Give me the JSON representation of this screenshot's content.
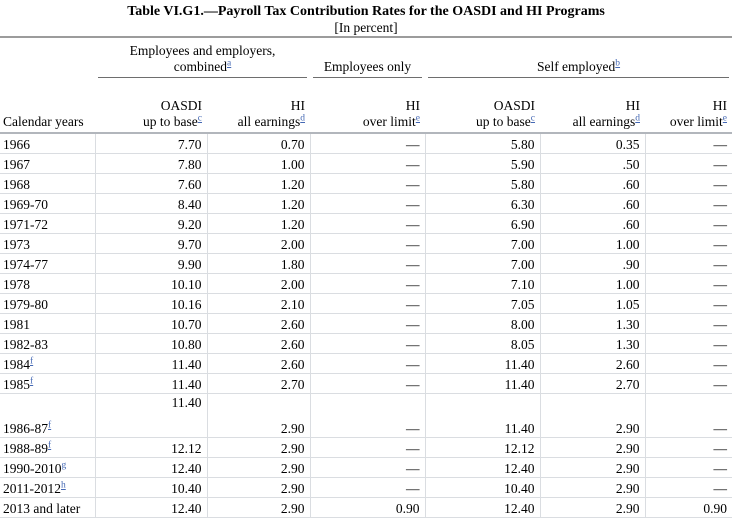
{
  "title": "Table VI.G1.—Payroll Tax Contribution Rates for the OASDI and HI Programs",
  "subtitle": "[In percent]",
  "colors": {
    "footnote_link": "#4468b4",
    "grid_light": "#dadde1",
    "group_underline": "#6e6e6e",
    "header_rule": "#b2b6bc",
    "title_rule": "#9c9c9c"
  },
  "header": {
    "row_label_col": "Calendar years",
    "groups": [
      {
        "line1": "Employees and employers,",
        "line2": "combined",
        "footnote": "a"
      },
      {
        "line2": "Employees only"
      },
      {
        "line2": "Self employed",
        "footnote": "b"
      }
    ],
    "columns": [
      {
        "line1": "OASDI",
        "line2": "up to base",
        "footnote": "c"
      },
      {
        "line1": "HI",
        "line2": "all earnings",
        "footnote": "d"
      },
      {
        "line1": "HI",
        "line2": "over limit",
        "footnote": "e"
      },
      {
        "line1": "OASDI",
        "line2": "up to base",
        "footnote": "c"
      },
      {
        "line1": "HI",
        "line2": "all earnings",
        "footnote": "d"
      },
      {
        "line1": "HI",
        "line2": "over limit",
        "footnote": "e"
      }
    ]
  },
  "rows": [
    {
      "label": "1966",
      "footnote": "",
      "values": [
        "7.70",
        "0.70",
        "—",
        "5.80",
        "0.35",
        "—"
      ]
    },
    {
      "label": "1967",
      "footnote": "",
      "values": [
        "7.80",
        "1.00",
        "—",
        "5.90",
        ".50",
        "—"
      ]
    },
    {
      "label": "1968",
      "footnote": "",
      "values": [
        "7.60",
        "1.20",
        "—",
        "5.80",
        ".60",
        "—"
      ]
    },
    {
      "label": "1969-70",
      "footnote": "",
      "values": [
        "8.40",
        "1.20",
        "—",
        "6.30",
        ".60",
        "—"
      ]
    },
    {
      "label": "1971-72",
      "footnote": "",
      "values": [
        "9.20",
        "1.20",
        "—",
        "6.90",
        ".60",
        "—"
      ]
    },
    {
      "label": "1973",
      "footnote": "",
      "values": [
        "9.70",
        "2.00",
        "—",
        "7.00",
        "1.00",
        "—"
      ]
    },
    {
      "label": "1974-77",
      "footnote": "",
      "values": [
        "9.90",
        "1.80",
        "—",
        "7.00",
        ".90",
        "—"
      ]
    },
    {
      "label": "1978",
      "footnote": "",
      "values": [
        "10.10",
        "2.00",
        "—",
        "7.10",
        "1.00",
        "—"
      ]
    },
    {
      "label": "1979-80",
      "footnote": "",
      "values": [
        "10.16",
        "2.10",
        "—",
        "7.05",
        "1.05",
        "—"
      ]
    },
    {
      "label": "1981",
      "footnote": "",
      "values": [
        "10.70",
        "2.60",
        "—",
        "8.00",
        "1.30",
        "—"
      ]
    },
    {
      "label": "1982-83",
      "footnote": "",
      "values": [
        "10.80",
        "2.60",
        "—",
        "8.05",
        "1.30",
        "—"
      ]
    },
    {
      "label": "1984",
      "footnote": "f",
      "values": [
        "11.40",
        "2.60",
        "—",
        "11.40",
        "2.60",
        "—"
      ]
    },
    {
      "label": "1985",
      "footnote": "f",
      "values": [
        "11.40",
        "2.70",
        "—",
        "11.40",
        "2.70",
        "—"
      ]
    },
    {
      "label": "1986-87",
      "footnote": "f",
      "tall": true,
      "oasdi_top": "11.40",
      "values": [
        "",
        "2.90",
        "—",
        "11.40",
        "2.90",
        "—"
      ]
    },
    {
      "label": "1988-89",
      "footnote": "f",
      "values": [
        "12.12",
        "2.90",
        "—",
        "12.12",
        "2.90",
        "—"
      ]
    },
    {
      "label": "1990-2010",
      "footnote": "g",
      "values": [
        "12.40",
        "2.90",
        "—",
        "12.40",
        "2.90",
        "—"
      ]
    },
    {
      "label": "2011-2012",
      "footnote": "h",
      "values": [
        "10.40",
        "2.90",
        "—",
        "10.40",
        "2.90",
        "—"
      ]
    },
    {
      "label": "2013 and later",
      "footnote": "",
      "values": [
        "12.40",
        "2.90",
        "0.90",
        "12.40",
        "2.90",
        "0.90"
      ]
    }
  ]
}
